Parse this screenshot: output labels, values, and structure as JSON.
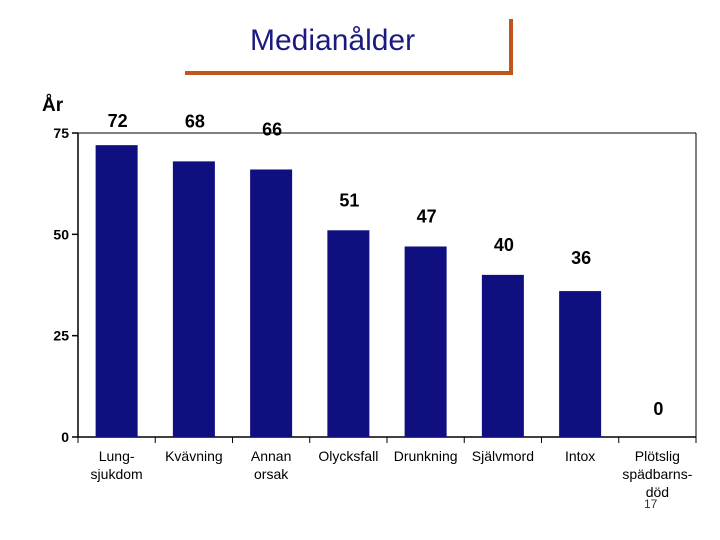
{
  "chart_data": {
    "type": "bar",
    "title": "Medianålder",
    "ylabel": "År",
    "xlabel": "",
    "ylim": [
      0,
      75
    ],
    "yticks": [
      0,
      25,
      50,
      75
    ],
    "categories": [
      [
        "Lung-",
        "sjukdom"
      ],
      [
        "Kvävning"
      ],
      [
        "Annan",
        "orsak"
      ],
      [
        "Olycksfall"
      ],
      [
        "Drunkning"
      ],
      [
        "Självmord"
      ],
      [
        "Intox"
      ],
      [
        "Plötslig",
        "spädbarns-",
        "död"
      ]
    ],
    "values": [
      72,
      68,
      66,
      51,
      47,
      40,
      36,
      0
    ],
    "bar_color": "#0f0f80",
    "grid": false
  },
  "page_number": "17",
  "accent_color": "#c0561c"
}
